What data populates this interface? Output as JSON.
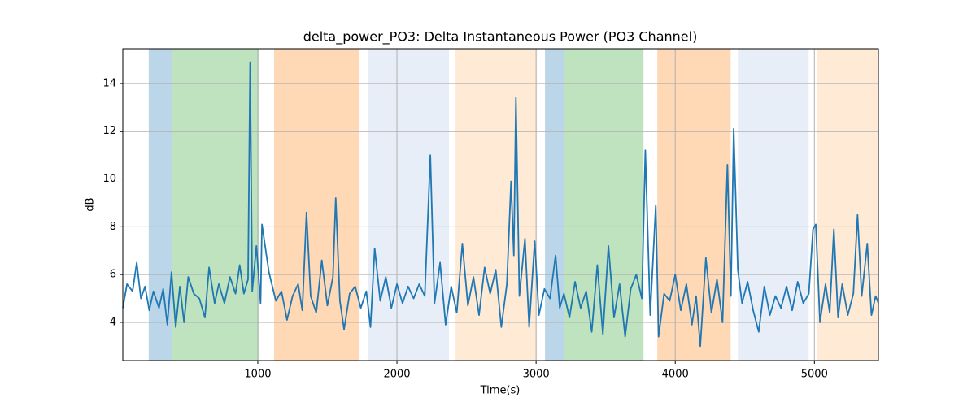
{
  "chart_data": {
    "type": "line",
    "title": "delta_power_PO3: Delta Instantaneous Power (PO3 Channel)",
    "xlabel": "Time(s)",
    "ylabel": "dB",
    "xlim": [
      30,
      5460
    ],
    "ylim": [
      2.4,
      15.46
    ],
    "xticks": [
      1000,
      2000,
      3000,
      4000,
      5000
    ],
    "yticks": [
      4,
      6,
      8,
      10,
      12,
      14
    ],
    "grid": true,
    "color": "#1f77b4",
    "spans": [
      {
        "start": 216,
        "end": 380,
        "color": "#1f77b4",
        "alpha": 0.3
      },
      {
        "start": 380,
        "end": 1012,
        "color": "#2ca02c",
        "alpha": 0.3
      },
      {
        "start": 1117,
        "end": 1731,
        "color": "#ff7f0e",
        "alpha": 0.3
      },
      {
        "start": 1789,
        "end": 2374,
        "color": "#aec7e8",
        "alpha": 0.3
      },
      {
        "start": 2421,
        "end": 3006,
        "color": "#ffbb78",
        "alpha": 0.3
      },
      {
        "start": 3064,
        "end": 3199,
        "color": "#1f77b4",
        "alpha": 0.3
      },
      {
        "start": 3199,
        "end": 3772,
        "color": "#2ca02c",
        "alpha": 0.3
      },
      {
        "start": 3871,
        "end": 4398,
        "color": "#ff7f0e",
        "alpha": 0.3
      },
      {
        "start": 4450,
        "end": 4959,
        "color": "#aec7e8",
        "alpha": 0.3
      },
      {
        "start": 5018,
        "end": 5460,
        "color": "#ffbb78",
        "alpha": 0.3
      }
    ],
    "x": [
      30,
      60,
      100,
      130,
      160,
      190,
      220,
      250,
      290,
      320,
      350,
      380,
      410,
      440,
      470,
      500,
      540,
      580,
      620,
      650,
      690,
      720,
      760,
      800,
      840,
      870,
      900,
      930,
      945,
      960,
      990,
      1020,
      1030,
      1080,
      1130,
      1170,
      1210,
      1250,
      1290,
      1320,
      1350,
      1380,
      1420,
      1460,
      1500,
      1540,
      1560,
      1590,
      1620,
      1660,
      1700,
      1740,
      1780,
      1810,
      1840,
      1880,
      1920,
      1960,
      2000,
      2040,
      2080,
      2120,
      2160,
      2200,
      2240,
      2270,
      2310,
      2350,
      2390,
      2430,
      2470,
      2510,
      2550,
      2590,
      2630,
      2670,
      2710,
      2750,
      2790,
      2820,
      2840,
      2855,
      2880,
      2920,
      2950,
      2990,
      3020,
      3060,
      3100,
      3140,
      3170,
      3200,
      3240,
      3280,
      3320,
      3360,
      3400,
      3440,
      3480,
      3520,
      3560,
      3600,
      3640,
      3680,
      3720,
      3760,
      3785,
      3820,
      3860,
      3880,
      3920,
      3960,
      4000,
      4040,
      4080,
      4120,
      4150,
      4180,
      4220,
      4260,
      4300,
      4340,
      4375,
      4400,
      4420,
      4450,
      4480,
      4520,
      4560,
      4600,
      4640,
      4680,
      4720,
      4760,
      4800,
      4840,
      4880,
      4920,
      4960,
      4990,
      5010,
      5040,
      5080,
      5110,
      5140,
      5170,
      5200,
      5240,
      5280,
      5310,
      5340,
      5380,
      5410,
      5440,
      5460
    ],
    "values": [
      4.6,
      5.6,
      5.3,
      6.5,
      5.0,
      5.5,
      4.5,
      5.3,
      4.6,
      5.4,
      3.9,
      6.1,
      3.8,
      5.5,
      4.0,
      5.9,
      5.2,
      5.0,
      4.2,
      6.3,
      4.8,
      5.6,
      4.8,
      5.9,
      5.2,
      6.4,
      5.2,
      5.8,
      14.9,
      5.3,
      7.2,
      4.8,
      8.1,
      6.1,
      4.9,
      5.3,
      4.1,
      5.1,
      5.6,
      4.5,
      8.6,
      5.1,
      4.4,
      6.6,
      4.7,
      5.9,
      9.2,
      4.9,
      3.7,
      5.2,
      5.5,
      4.6,
      5.3,
      3.8,
      7.1,
      4.9,
      5.9,
      4.6,
      5.6,
      4.8,
      5.5,
      5.0,
      5.6,
      5.1,
      11.0,
      4.8,
      6.5,
      3.9,
      5.5,
      4.4,
      7.3,
      4.7,
      5.9,
      4.3,
      6.3,
      5.2,
      6.2,
      3.8,
      5.6,
      9.9,
      6.8,
      13.4,
      5.1,
      7.5,
      3.8,
      7.4,
      4.3,
      5.4,
      5.0,
      6.8,
      4.6,
      5.2,
      4.2,
      5.7,
      4.6,
      5.3,
      3.6,
      6.4,
      3.5,
      7.2,
      4.2,
      5.6,
      3.4,
      5.4,
      6.0,
      5.0,
      11.2,
      4.3,
      8.9,
      3.4,
      5.2,
      4.9,
      6.0,
      4.5,
      5.6,
      3.9,
      5.1,
      3.0,
      6.7,
      4.4,
      5.8,
      4.0,
      10.6,
      5.1,
      12.1,
      6.2,
      4.8,
      5.7,
      4.5,
      3.6,
      5.5,
      4.3,
      5.1,
      4.6,
      5.5,
      4.5,
      5.7,
      4.8,
      5.2,
      7.9,
      8.1,
      4.0,
      5.6,
      4.4,
      7.9,
      4.2,
      5.6,
      4.3,
      5.2,
      8.5,
      5.1,
      7.3,
      4.3,
      5.1,
      4.8
    ]
  }
}
